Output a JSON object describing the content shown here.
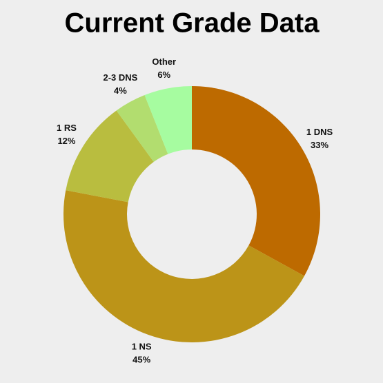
{
  "chart_data": {
    "type": "pie",
    "title": "Current Grade Data",
    "categories": [
      "1 DNS",
      "1 NS",
      "1 RS",
      "2-3 DNS",
      "Other"
    ],
    "values": [
      33,
      45,
      12,
      4,
      6
    ],
    "value_labels": [
      "33%",
      "45%",
      "12%",
      "4%",
      "6%"
    ],
    "colors": [
      "#bd6a00",
      "#bc9418",
      "#b9bd3f",
      "#b2dd6f",
      "#a6fca0"
    ]
  }
}
